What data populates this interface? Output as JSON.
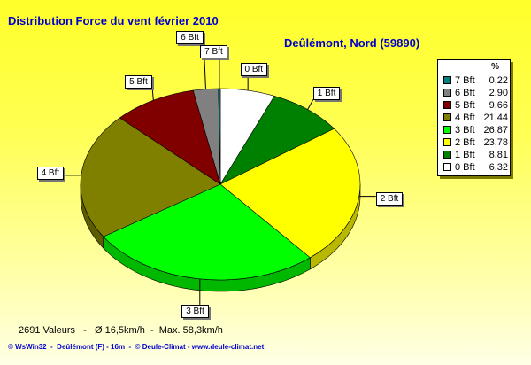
{
  "header": {
    "title": "Distribution Force du vent  février 2010",
    "location": "Deûlémont, Nord (59890)"
  },
  "stats_line": "2691 Valeurs   -   Ø 16,5km/h  -  Max. 58,3km/h",
  "footer_line": "© WsWin32  -  Deûlémont (F) - 16m  -  © Deule-Climat - www.deule-climat.net",
  "legend": {
    "header": "%",
    "items": [
      {
        "label": "7 Bft",
        "value": "0,22",
        "color": "#008080"
      },
      {
        "label": "6 Bft",
        "value": "2,90",
        "color": "#808080"
      },
      {
        "label": "5 Bft",
        "value": "9,66",
        "color": "#800000"
      },
      {
        "label": "4 Bft",
        "value": "21,44",
        "color": "#808000"
      },
      {
        "label": "3 Bft",
        "value": "26,87",
        "color": "#00ff00"
      },
      {
        "label": "2 Bft",
        "value": "23,78",
        "color": "#ffff00"
      },
      {
        "label": "1 Bft",
        "value": "8,81",
        "color": "#008000"
      },
      {
        "label": "0 Bft",
        "value": "6,32",
        "color": "#ffffff"
      }
    ]
  },
  "chart_data": {
    "type": "pie",
    "title": "Distribution Force du vent  février 2010",
    "subtitle": "Deûlémont, Nord (59890)",
    "unit": "%",
    "categories": [
      "0 Bft",
      "1 Bft",
      "2 Bft",
      "3 Bft",
      "4 Bft",
      "5 Bft",
      "6 Bft",
      "7 Bft"
    ],
    "values": [
      6.32,
      8.81,
      23.78,
      26.87,
      21.44,
      9.66,
      2.9,
      0.22
    ],
    "colors": [
      "#ffffff",
      "#008000",
      "#ffff00",
      "#00ff00",
      "#808000",
      "#800000",
      "#808080",
      "#008080"
    ],
    "start_angle_deg": 0,
    "direction": "clockwise from top",
    "style": "3D pie",
    "legend_position": "right"
  }
}
